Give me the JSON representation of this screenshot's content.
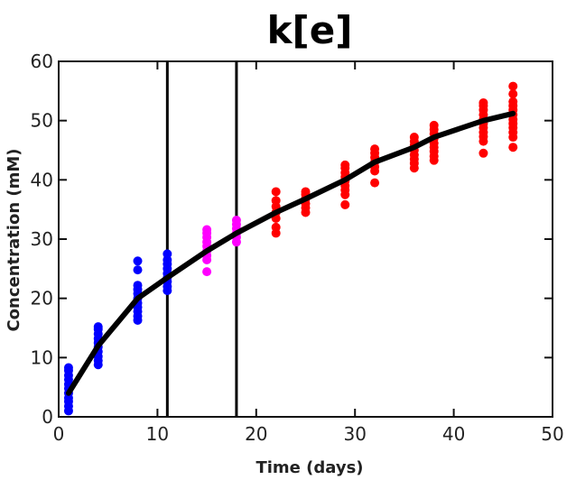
{
  "chart_data": {
    "type": "scatter",
    "title": "k[e]",
    "xlabel": "Time (days)",
    "ylabel": "Concentration (mM)",
    "xlim": [
      0,
      50
    ],
    "ylim": [
      0,
      60
    ],
    "xticks": [
      0,
      10,
      20,
      30,
      40,
      50
    ],
    "yticks": [
      0,
      10,
      20,
      30,
      40,
      50,
      60
    ],
    "grid": false,
    "legend": "none",
    "vertical_lines_x": [
      11,
      18
    ],
    "series": [
      {
        "color": "#0000ff",
        "points": [
          {
            "x": 1,
            "y": 1
          },
          {
            "x": 1,
            "y": 1.8
          },
          {
            "x": 1,
            "y": 2.6
          },
          {
            "x": 1,
            "y": 3.2
          },
          {
            "x": 1,
            "y": 4
          },
          {
            "x": 1,
            "y": 4.8
          },
          {
            "x": 1,
            "y": 5.5
          },
          {
            "x": 1,
            "y": 6.3
          },
          {
            "x": 1,
            "y": 7
          },
          {
            "x": 1,
            "y": 7.8
          },
          {
            "x": 1,
            "y": 8.3
          },
          {
            "x": 4,
            "y": 8.8
          },
          {
            "x": 4,
            "y": 9.5
          },
          {
            "x": 4,
            "y": 10.2
          },
          {
            "x": 4,
            "y": 11
          },
          {
            "x": 4,
            "y": 11.8
          },
          {
            "x": 4,
            "y": 12.5
          },
          {
            "x": 4,
            "y": 13.2
          },
          {
            "x": 4,
            "y": 14
          },
          {
            "x": 4,
            "y": 14.8
          },
          {
            "x": 4,
            "y": 15.2
          },
          {
            "x": 8,
            "y": 16.3
          },
          {
            "x": 8,
            "y": 17
          },
          {
            "x": 8,
            "y": 17.8
          },
          {
            "x": 8,
            "y": 18.5
          },
          {
            "x": 8,
            "y": 19.2
          },
          {
            "x": 8,
            "y": 20
          },
          {
            "x": 8,
            "y": 20.8
          },
          {
            "x": 8,
            "y": 21.5
          },
          {
            "x": 8,
            "y": 22.2
          },
          {
            "x": 8,
            "y": 24.8
          },
          {
            "x": 8,
            "y": 26.3
          },
          {
            "x": 11,
            "y": 21.3
          },
          {
            "x": 11,
            "y": 22
          },
          {
            "x": 11,
            "y": 22.8
          },
          {
            "x": 11,
            "y": 23.5
          },
          {
            "x": 11,
            "y": 24.2
          },
          {
            "x": 11,
            "y": 25
          },
          {
            "x": 11,
            "y": 25.8
          },
          {
            "x": 11,
            "y": 26.5
          },
          {
            "x": 11,
            "y": 27.5
          }
        ]
      },
      {
        "color": "#ff00ff",
        "points": [
          {
            "x": 15,
            "y": 24.5
          },
          {
            "x": 15,
            "y": 26.5
          },
          {
            "x": 15,
            "y": 27.2
          },
          {
            "x": 15,
            "y": 28
          },
          {
            "x": 15,
            "y": 28.8
          },
          {
            "x": 15,
            "y": 29.5
          },
          {
            "x": 15,
            "y": 30.3
          },
          {
            "x": 15,
            "y": 31
          },
          {
            "x": 15,
            "y": 31.6
          },
          {
            "x": 18,
            "y": 29.5
          },
          {
            "x": 18,
            "y": 30.3
          },
          {
            "x": 18,
            "y": 31
          },
          {
            "x": 18,
            "y": 31.8
          },
          {
            "x": 18,
            "y": 32.5
          },
          {
            "x": 18,
            "y": 33.2
          }
        ]
      },
      {
        "color": "#ff0000",
        "points": [
          {
            "x": 22,
            "y": 31
          },
          {
            "x": 22,
            "y": 32
          },
          {
            "x": 22,
            "y": 33.5
          },
          {
            "x": 22,
            "y": 34.5
          },
          {
            "x": 22,
            "y": 35.5
          },
          {
            "x": 22,
            "y": 36.5
          },
          {
            "x": 22,
            "y": 38
          },
          {
            "x": 25,
            "y": 34.5
          },
          {
            "x": 25,
            "y": 35.3
          },
          {
            "x": 25,
            "y": 36
          },
          {
            "x": 25,
            "y": 36.8
          },
          {
            "x": 25,
            "y": 37.5
          },
          {
            "x": 25,
            "y": 38
          },
          {
            "x": 29,
            "y": 35.8
          },
          {
            "x": 29,
            "y": 37.5
          },
          {
            "x": 29,
            "y": 38.3
          },
          {
            "x": 29,
            "y": 39
          },
          {
            "x": 29,
            "y": 39.8
          },
          {
            "x": 29,
            "y": 40.5
          },
          {
            "x": 29,
            "y": 41.2
          },
          {
            "x": 29,
            "y": 42
          },
          {
            "x": 29,
            "y": 42.5
          },
          {
            "x": 32,
            "y": 39.5
          },
          {
            "x": 32,
            "y": 41.5
          },
          {
            "x": 32,
            "y": 42.2
          },
          {
            "x": 32,
            "y": 43
          },
          {
            "x": 32,
            "y": 43.8
          },
          {
            "x": 32,
            "y": 44.5
          },
          {
            "x": 32,
            "y": 45.2
          },
          {
            "x": 36,
            "y": 42
          },
          {
            "x": 36,
            "y": 42.8
          },
          {
            "x": 36,
            "y": 43.5
          },
          {
            "x": 36,
            "y": 44.2
          },
          {
            "x": 36,
            "y": 45
          },
          {
            "x": 36,
            "y": 45.8
          },
          {
            "x": 36,
            "y": 46.5
          },
          {
            "x": 36,
            "y": 47.2
          },
          {
            "x": 38,
            "y": 43.3
          },
          {
            "x": 38,
            "y": 44
          },
          {
            "x": 38,
            "y": 44.8
          },
          {
            "x": 38,
            "y": 45.5
          },
          {
            "x": 38,
            "y": 46.2
          },
          {
            "x": 38,
            "y": 47
          },
          {
            "x": 38,
            "y": 47.8
          },
          {
            "x": 38,
            "y": 48.5
          },
          {
            "x": 38,
            "y": 49.2
          },
          {
            "x": 43,
            "y": 44.5
          },
          {
            "x": 43,
            "y": 46.5
          },
          {
            "x": 43,
            "y": 47.3
          },
          {
            "x": 43,
            "y": 48
          },
          {
            "x": 43,
            "y": 48.8
          },
          {
            "x": 43,
            "y": 49.5
          },
          {
            "x": 43,
            "y": 50.2
          },
          {
            "x": 43,
            "y": 51
          },
          {
            "x": 43,
            "y": 51.8
          },
          {
            "x": 43,
            "y": 52.5
          },
          {
            "x": 43,
            "y": 53
          },
          {
            "x": 46,
            "y": 45.5
          },
          {
            "x": 46,
            "y": 47.2
          },
          {
            "x": 46,
            "y": 48
          },
          {
            "x": 46,
            "y": 48.8
          },
          {
            "x": 46,
            "y": 49.5
          },
          {
            "x": 46,
            "y": 50.2
          },
          {
            "x": 46,
            "y": 51
          },
          {
            "x": 46,
            "y": 51.8
          },
          {
            "x": 46,
            "y": 52.5
          },
          {
            "x": 46,
            "y": 53.2
          },
          {
            "x": 46,
            "y": 54.5
          },
          {
            "x": 46,
            "y": 55.8
          }
        ]
      },
      {
        "type": "line",
        "color": "#000000",
        "x": [
          1,
          4,
          8,
          11,
          15,
          18,
          22,
          25,
          29,
          32,
          36,
          38,
          43,
          46
        ],
        "y": [
          4,
          12,
          20,
          23.5,
          28,
          31,
          34.5,
          36.8,
          40,
          43,
          45.5,
          47.2,
          50,
          51.2
        ]
      }
    ]
  }
}
